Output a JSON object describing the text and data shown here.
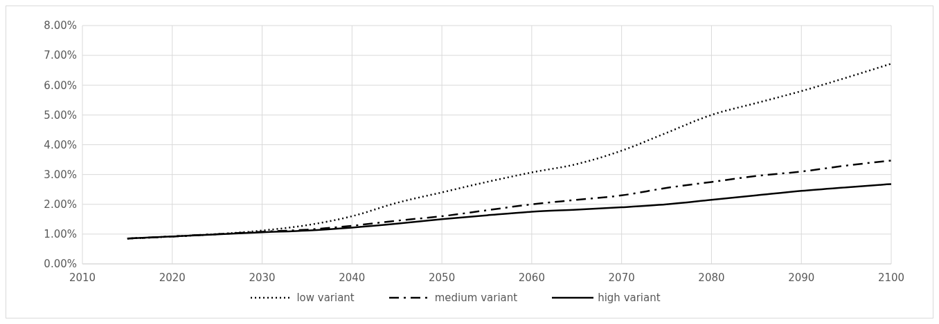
{
  "chart_data": {
    "type": "line",
    "x": [
      2015,
      2020,
      2025,
      2030,
      2035,
      2040,
      2045,
      2050,
      2055,
      2060,
      2065,
      2070,
      2075,
      2080,
      2085,
      2090,
      2095,
      2100
    ],
    "series": [
      {
        "name": "low variant",
        "color": "#000000",
        "line_style": "dotted",
        "values": [
          0.85,
          0.92,
          1.0,
          1.12,
          1.3,
          1.6,
          2.05,
          2.4,
          2.75,
          3.07,
          3.35,
          3.8,
          4.4,
          5.0,
          5.4,
          5.8,
          6.25,
          6.72
        ]
      },
      {
        "name": "medium variant",
        "color": "#000000",
        "line_style": "dashed",
        "values": [
          0.85,
          0.92,
          1.0,
          1.08,
          1.15,
          1.28,
          1.45,
          1.6,
          1.8,
          2.0,
          2.15,
          2.3,
          2.55,
          2.75,
          2.95,
          3.1,
          3.3,
          3.47
        ]
      },
      {
        "name": "high variant",
        "color": "#000000",
        "line_style": "solid",
        "values": [
          0.85,
          0.92,
          0.99,
          1.06,
          1.12,
          1.22,
          1.35,
          1.5,
          1.63,
          1.75,
          1.82,
          1.9,
          2.0,
          2.15,
          2.3,
          2.45,
          2.57,
          2.68
        ]
      }
    ],
    "xlim": [
      2010,
      2100
    ],
    "xticks": [
      2010,
      2020,
      2030,
      2040,
      2050,
      2060,
      2070,
      2080,
      2090,
      2100
    ],
    "ylim": [
      0,
      8
    ],
    "yticks": [
      {
        "value": 0,
        "label": "0.00%"
      },
      {
        "value": 1,
        "label": "1.00%"
      },
      {
        "value": 2,
        "label": "2.00%"
      },
      {
        "value": 3,
        "label": "3.00%"
      },
      {
        "value": 4,
        "label": "4.00%"
      },
      {
        "value": 5,
        "label": "5.00%"
      },
      {
        "value": 6,
        "label": "6.00%"
      },
      {
        "value": 7,
        "label": "7.00%"
      },
      {
        "value": 8,
        "label": "8.00%"
      }
    ],
    "grid": true,
    "legend": "bottom",
    "marker": "none"
  }
}
